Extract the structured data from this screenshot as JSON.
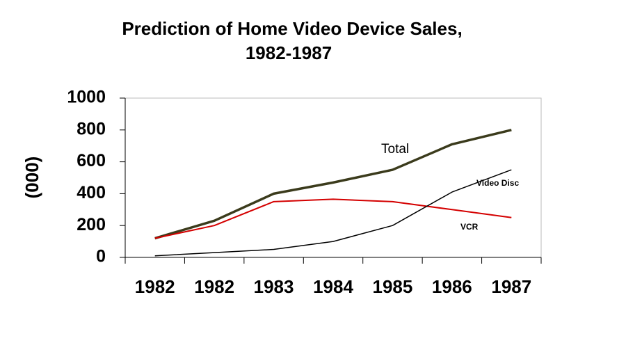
{
  "chart_data": {
    "type": "line",
    "title": [
      "Prediction of Home Video Device Sales,",
      "1982-1987"
    ],
    "y_label": "(000)",
    "categories": [
      "1982",
      "1982",
      "1983",
      "1984",
      "1985",
      "1986",
      "1987"
    ],
    "series": [
      {
        "name": "Total",
        "color": "#3b3b1c",
        "values": [
          120,
          230,
          400,
          470,
          550,
          710,
          800
        ]
      },
      {
        "name": "VCR",
        "color": "#d40000",
        "values": [
          120,
          200,
          350,
          365,
          350,
          300,
          250
        ]
      },
      {
        "name": "Video Disc",
        "color": "#000000",
        "values": [
          10,
          30,
          50,
          100,
          200,
          410,
          550
        ]
      }
    ],
    "ylim": [
      0,
      1000
    ],
    "yticks": [
      0,
      200,
      400,
      600,
      800,
      1000
    ],
    "grid": false
  }
}
